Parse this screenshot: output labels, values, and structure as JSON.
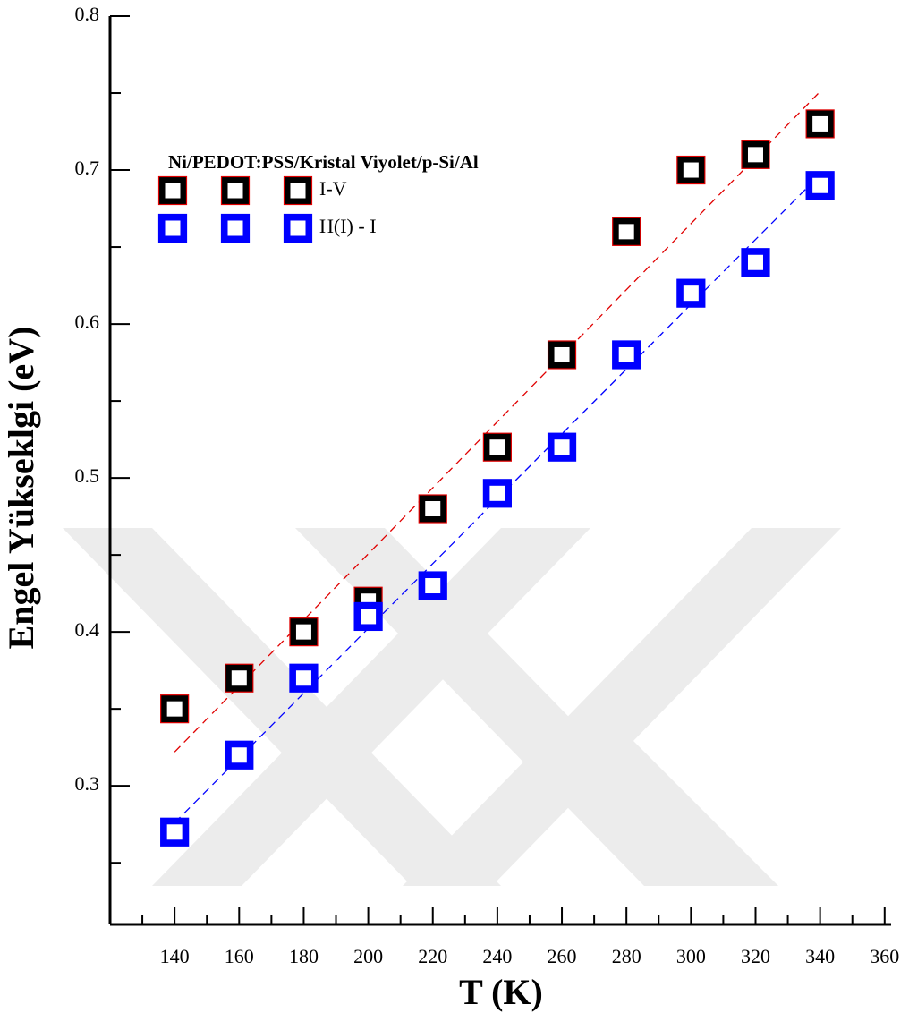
{
  "chart_data": {
    "type": "scatter",
    "xlabel": "T (K)",
    "ylabel": "Engel Yükseklgi (eV)",
    "legend_title": "Ni/PEDOT:PSS/Kristal Viyolet/p-Si/Al",
    "legend_loc": "upper left",
    "x": [
      140,
      160,
      180,
      200,
      220,
      240,
      260,
      280,
      300,
      320,
      340
    ],
    "series": [
      {
        "name": "I-V",
        "color": "#000000",
        "edgecolor": "#e00000",
        "values": [
          0.35,
          0.37,
          0.4,
          0.42,
          0.48,
          0.52,
          0.58,
          0.66,
          0.7,
          0.71,
          0.73
        ],
        "fit": {
          "x": [
            140,
            340
          ],
          "values": [
            0.322,
            0.751
          ],
          "color": "#e00000"
        }
      },
      {
        "name": "H(I) - I",
        "color": "#0000ff",
        "edgecolor": "#0000ff",
        "values": [
          0.27,
          0.32,
          0.37,
          0.41,
          0.43,
          0.49,
          0.52,
          0.58,
          0.62,
          0.64,
          0.69
        ],
        "fit": {
          "x": [
            140,
            340
          ],
          "values": [
            0.276,
            0.697
          ],
          "color": "#0000ff"
        }
      }
    ],
    "xlim": [
      120,
      362
    ],
    "ylim": [
      0.21,
      0.8
    ],
    "xticks": [
      140,
      160,
      180,
      200,
      220,
      240,
      260,
      280,
      300,
      320,
      340,
      360
    ],
    "xminorticks": [
      130,
      150,
      170,
      190,
      210,
      230,
      250,
      270,
      290,
      310,
      330,
      350
    ],
    "yticks": [
      0.3,
      0.4,
      0.5,
      0.6,
      0.7,
      0.8
    ],
    "yminorticks": [
      0.25,
      0.35,
      0.45,
      0.55,
      0.65,
      0.75
    ]
  }
}
